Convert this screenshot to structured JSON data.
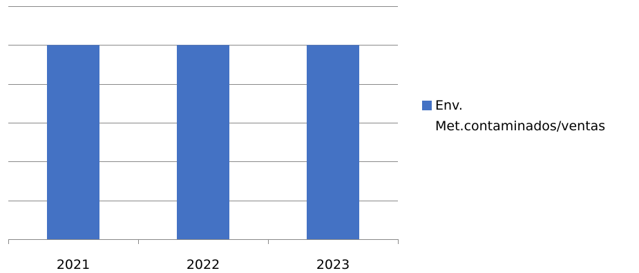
{
  "chart_data": {
    "type": "bar",
    "categories": [
      "2021",
      "2022",
      "2023"
    ],
    "series": [
      {
        "name": "Env. Met.contaminados/ventas",
        "values": [
          5,
          5,
          5
        ],
        "color": "#4472C4"
      }
    ],
    "title": "",
    "xlabel": "",
    "ylabel": "",
    "ylim": [
      0,
      6
    ],
    "grid": true,
    "legend_position": "right",
    "y_tick_labels_shown": false
  },
  "legend": {
    "items": [
      {
        "label_line1": "Env.",
        "label_line2": "Met.contaminados/ventas",
        "color": "#4472C4"
      }
    ]
  }
}
